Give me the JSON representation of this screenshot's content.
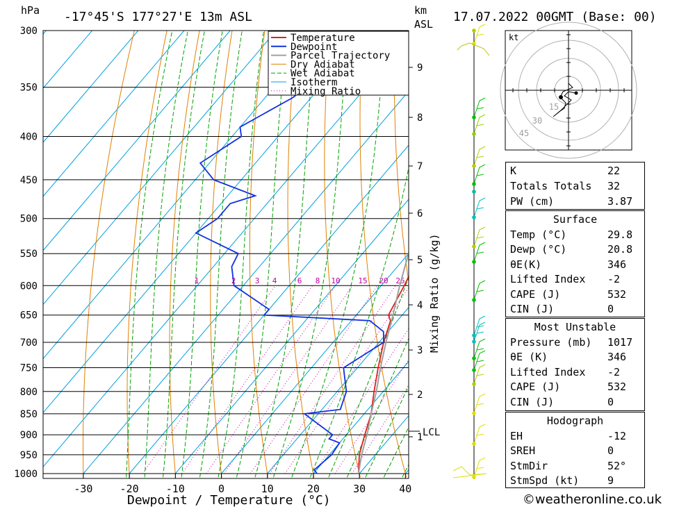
{
  "header": {
    "location": "-17°45'S 177°27'E 13m ASL",
    "datetime": "17.07.2022 00GMT (Base: 00)",
    "left_unit": "hPa",
    "right_unit_top": "km",
    "right_unit_bottom": "ASL"
  },
  "chart_data": {
    "type": "line",
    "title": "-17°45'S 177°27'E 13m ASL",
    "xlabel": "Dewpoint / Temperature (°C)",
    "ylabel": "hPa",
    "y2label": "Mixing Ratio (g/kg)",
    "x_ticks": [
      "-30",
      "-20",
      "-10",
      "0",
      "10",
      "20",
      "30",
      "40"
    ],
    "pressure_ticks": [
      "300",
      "350",
      "400",
      "450",
      "500",
      "550",
      "600",
      "650",
      "700",
      "750",
      "800",
      "850",
      "900",
      "950",
      "1000"
    ],
    "km_ticks": [
      "1",
      "2",
      "3",
      "4",
      "5",
      "6",
      "7",
      "8",
      "9"
    ],
    "lcl_label": "LCL",
    "mixing_ratio_labels": [
      "1",
      "2",
      "3",
      "4",
      "6",
      "8",
      "10",
      "15",
      "20",
      "25"
    ],
    "legend": [
      "Temperature",
      "Dewpoint",
      "Parcel Trajectory",
      "Dry Adiabat",
      "Wet Adiabat",
      "Isotherm",
      "Mixing Ratio"
    ],
    "colors": {
      "temperature": "#e02020",
      "dewpoint": "#1030e0",
      "parcel": "#a0a0a0",
      "dry_adiabat": "#e08000",
      "wet_adiabat": "#00a000",
      "isotherm": "#00a0e0",
      "mixing_ratio": "#c000a0"
    },
    "xlim": [
      -40,
      40
    ],
    "ylim_hPa": [
      1000,
      300
    ],
    "log_pressure": true,
    "grid": true,
    "series": [
      {
        "name": "Temperature",
        "points": [
          [
            1000,
            29.8
          ],
          [
            950,
            26.5
          ],
          [
            900,
            24
          ],
          [
            850,
            21.5
          ],
          [
            800,
            18
          ],
          [
            750,
            14.5
          ],
          [
            700,
            11
          ],
          [
            660,
            8.5
          ],
          [
            650,
            7
          ],
          [
            600,
            5
          ],
          [
            550,
            2.5
          ],
          [
            500,
            -3
          ],
          [
            450,
            -8.5
          ],
          [
            400,
            -15
          ],
          [
            350,
            -22
          ],
          [
            300,
            -31
          ]
        ]
      },
      {
        "name": "Dewpoint",
        "points": [
          [
            1000,
            20.8
          ],
          [
            990,
            19.5
          ],
          [
            950,
            20.5
          ],
          [
            920,
            20
          ],
          [
            910,
            17
          ],
          [
            900,
            17
          ],
          [
            850,
            7
          ],
          [
            840,
            14
          ],
          [
            800,
            12
          ],
          [
            760,
            8
          ],
          [
            750,
            7
          ],
          [
            700,
            11
          ],
          [
            680,
            9
          ],
          [
            660,
            4
          ],
          [
            650,
            -20
          ],
          [
            640,
            -20
          ],
          [
            600,
            -32
          ],
          [
            570,
            -36
          ],
          [
            550,
            -37
          ],
          [
            520,
            -50
          ],
          [
            500,
            -48
          ],
          [
            480,
            -48
          ],
          [
            470,
            -44
          ],
          [
            450,
            -56
          ],
          [
            430,
            -62
          ],
          [
            400,
            -58
          ],
          [
            390,
            -60
          ],
          [
            360,
            -54
          ],
          [
            340,
            -52
          ],
          [
            310,
            -50
          ],
          [
            300,
            -58
          ]
        ]
      },
      {
        "name": "Parcel Trajectory",
        "points": [
          [
            1000,
            29.8
          ],
          [
            950,
            27
          ],
          [
            900,
            24.5
          ],
          [
            850,
            21.5
          ],
          [
            800,
            18.5
          ],
          [
            750,
            15
          ],
          [
            700,
            11.5
          ],
          [
            650,
            8
          ],
          [
            600,
            4
          ],
          [
            550,
            0
          ],
          [
            500,
            -4
          ],
          [
            450,
            -9.5
          ],
          [
            400,
            -16
          ],
          [
            370,
            -21
          ],
          [
            350,
            -24
          ],
          [
            320,
            -28
          ]
        ]
      }
    ]
  },
  "hodograph": {
    "unit_label": "kt",
    "ring_labels": [
      "15",
      "30",
      "45"
    ]
  },
  "indices": {
    "rows": [
      {
        "label": "K",
        "value": "22"
      },
      {
        "label": "Totals Totals",
        "value": "32"
      },
      {
        "label": "PW (cm)",
        "value": "3.87"
      }
    ]
  },
  "surface": {
    "title": "Surface",
    "rows": [
      {
        "label": "Temp (°C)",
        "value": "29.8"
      },
      {
        "label": "Dewp (°C)",
        "value": "20.8"
      },
      {
        "label": "θE(K)",
        "value": "346"
      },
      {
        "label": "Lifted Index",
        "value": "-2"
      },
      {
        "label": "CAPE (J)",
        "value": "532"
      },
      {
        "label": "CIN (J)",
        "value": "0"
      }
    ]
  },
  "most_unstable": {
    "title": "Most Unstable",
    "rows": [
      {
        "label": "Pressure (mb)",
        "value": "1017"
      },
      {
        "label": "θE (K)",
        "value": "346"
      },
      {
        "label": "Lifted Index",
        "value": "-2"
      },
      {
        "label": "CAPE (J)",
        "value": "532"
      },
      {
        "label": "CIN (J)",
        "value": "0"
      }
    ]
  },
  "hodograph_stats": {
    "title": "Hodograph",
    "rows": [
      {
        "label": "EH",
        "value": "-12"
      },
      {
        "label": "SREH",
        "value": "0"
      },
      {
        "label": "StmDir",
        "value": "52°"
      },
      {
        "label": "StmSpd (kt)",
        "value": "9"
      }
    ]
  },
  "credit": "©weatheronline.co.uk"
}
